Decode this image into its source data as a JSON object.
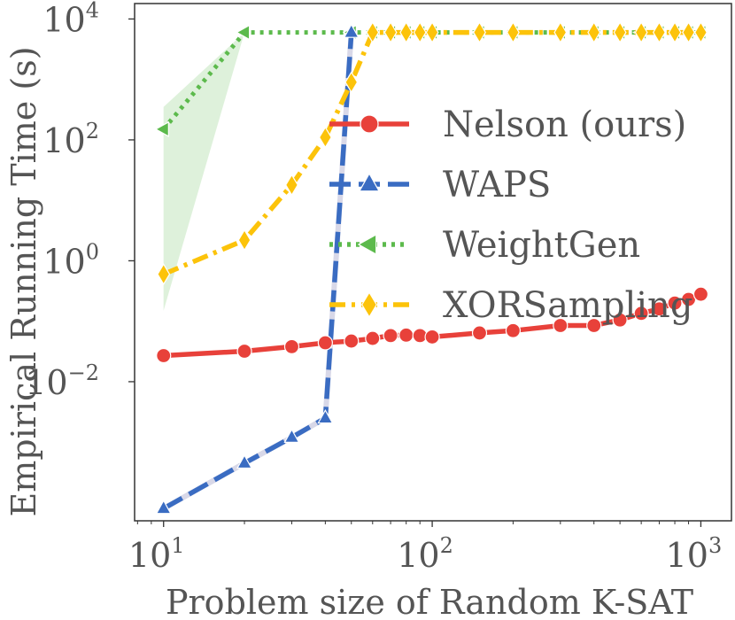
{
  "chart_data": {
    "type": "line",
    "xscale": "log",
    "yscale": "log",
    "xlabel": "Problem size of Random K-SAT",
    "ylabel": "Empirical Running Time (s)",
    "xlim": [
      7.8,
      1300
    ],
    "ylim": [
      5e-05,
      18000
    ],
    "xticks": [
      {
        "value": 10,
        "base": "10",
        "exp": "1"
      },
      {
        "value": 100,
        "base": "10",
        "exp": "2"
      },
      {
        "value": 1000,
        "base": "10",
        "exp": "3"
      }
    ],
    "yticks": [
      {
        "value": 0.01,
        "base": "10",
        "exp": "−2"
      },
      {
        "value": 1,
        "base": "10",
        "exp": "0"
      },
      {
        "value": 100,
        "base": "10",
        "exp": "2"
      },
      {
        "value": 10000,
        "base": "10",
        "exp": "4"
      }
    ],
    "legend_position": "center-right",
    "series": [
      {
        "name": "Nelson (ours)",
        "color": "#e8413a",
        "marker": "circle",
        "dash": "solid",
        "x": [
          10,
          20,
          30,
          40,
          50,
          60,
          70,
          80,
          90,
          100,
          150,
          200,
          300,
          400,
          500,
          600,
          700,
          800,
          900,
          1000
        ],
        "y": [
          0.027,
          0.032,
          0.038,
          0.044,
          0.047,
          0.052,
          0.058,
          0.059,
          0.058,
          0.055,
          0.064,
          0.07,
          0.085,
          0.085,
          0.105,
          0.135,
          0.16,
          0.2,
          0.23,
          0.28
        ]
      },
      {
        "name": "WAPS",
        "color": "#3a6cc2",
        "marker": "triangle-up",
        "dash": "dashed",
        "x": [
          10,
          20,
          30,
          40,
          50
        ],
        "y": [
          8e-05,
          0.00045,
          0.0012,
          0.0025,
          6000
        ]
      },
      {
        "name": "WeightGen",
        "color": "#5cba4c",
        "marker": "triangle-left",
        "dash": "dotted",
        "x": [
          10,
          20,
          50,
          60,
          70,
          80,
          90,
          100,
          150,
          200,
          300,
          400,
          500,
          600,
          700,
          800,
          900,
          1000
        ],
        "y": [
          150,
          6000,
          6000,
          6000,
          6000,
          6000,
          6000,
          6000,
          6000,
          6000,
          6000,
          6000,
          6000,
          6000,
          6000,
          6000,
          6000,
          6000
        ],
        "band": {
          "x": [
            10,
            20
          ],
          "low": [
            0.15,
            6000
          ],
          "high": [
            350,
            6000
          ]
        }
      },
      {
        "name": "XORSampling",
        "color": "#fcc30a",
        "marker": "diamond",
        "dash": "dashdot",
        "x": [
          10,
          20,
          30,
          40,
          50,
          60,
          70,
          80,
          90,
          100,
          150,
          200,
          300,
          400,
          500,
          600,
          700,
          800,
          900,
          1000
        ],
        "y": [
          0.6,
          2.2,
          18,
          110,
          900,
          6000,
          6000,
          6000,
          6000,
          6000,
          6000,
          6000,
          6000,
          6000,
          6000,
          6000,
          6000,
          6000,
          6000,
          6000
        ]
      }
    ]
  }
}
